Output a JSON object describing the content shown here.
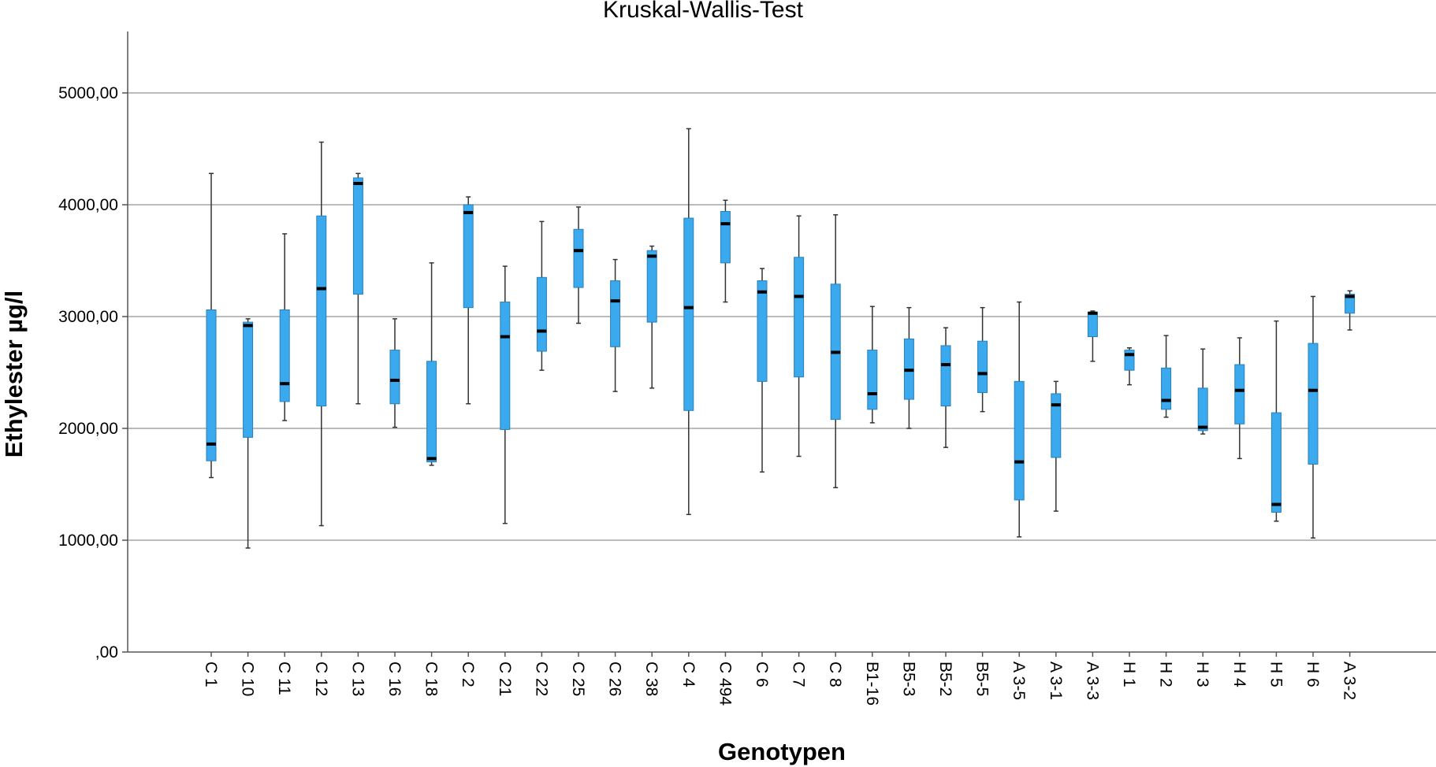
{
  "chart_data": {
    "type": "boxplot",
    "title": "Kruskal-Wallis-Test",
    "xlabel": "Genotypen",
    "ylabel": "Ethylester µg/l",
    "ylim": [
      0,
      5500
    ],
    "yticks": [
      0,
      1000,
      2000,
      3000,
      4000,
      5000
    ],
    "ytick_labels": [
      ",00",
      "1000,00",
      "2000,00",
      "3000,00",
      "4000,00",
      "5000,00"
    ],
    "grid": "horizontal",
    "box_color": "#3aa9ee",
    "categories": [
      "C 1",
      "C 10",
      "C 11",
      "C 12",
      "C 13",
      "C 16",
      "C 18",
      "C 2",
      "C 21",
      "C 22",
      "C 25",
      "C 26",
      "C 38",
      "C 4",
      "C 494",
      "C 6",
      "C 7",
      "C 8",
      "B1-16",
      "B5-3",
      "B5-2",
      "B5-5",
      "A 3-5",
      "A 3-1",
      "A 3-3",
      "H 1",
      "H 2",
      "H 3",
      "H 4",
      "H 5",
      "H 6",
      "A 3-2"
    ],
    "boxes": [
      {
        "min": 1560,
        "q1": 1710,
        "median": 1860,
        "q3": 3060,
        "max": 4280
      },
      {
        "min": 930,
        "q1": 1920,
        "median": 2920,
        "q3": 2950,
        "max": 2980
      },
      {
        "min": 2070,
        "q1": 2240,
        "median": 2400,
        "q3": 3060,
        "max": 3740
      },
      {
        "min": 1130,
        "q1": 2200,
        "median": 3250,
        "q3": 3900,
        "max": 4560
      },
      {
        "min": 2220,
        "q1": 3200,
        "median": 4190,
        "q3": 4240,
        "max": 4280
      },
      {
        "min": 2010,
        "q1": 2220,
        "median": 2430,
        "q3": 2700,
        "max": 2980
      },
      {
        "min": 1670,
        "q1": 1700,
        "median": 1730,
        "q3": 2600,
        "max": 3480
      },
      {
        "min": 2220,
        "q1": 3080,
        "median": 3930,
        "q3": 4000,
        "max": 4070
      },
      {
        "min": 1150,
        "q1": 1990,
        "median": 2820,
        "q3": 3130,
        "max": 3450
      },
      {
        "min": 2520,
        "q1": 2690,
        "median": 2870,
        "q3": 3350,
        "max": 3850
      },
      {
        "min": 2940,
        "q1": 3260,
        "median": 3590,
        "q3": 3780,
        "max": 3980
      },
      {
        "min": 2330,
        "q1": 2730,
        "median": 3140,
        "q3": 3320,
        "max": 3510
      },
      {
        "min": 2360,
        "q1": 2950,
        "median": 3540,
        "q3": 3590,
        "max": 3630
      },
      {
        "min": 1230,
        "q1": 2160,
        "median": 3080,
        "q3": 3880,
        "max": 4680
      },
      {
        "min": 3130,
        "q1": 3480,
        "median": 3830,
        "q3": 3940,
        "max": 4040
      },
      {
        "min": 1610,
        "q1": 2420,
        "median": 3220,
        "q3": 3320,
        "max": 3430
      },
      {
        "min": 1750,
        "q1": 2460,
        "median": 3180,
        "q3": 3530,
        "max": 3900
      },
      {
        "min": 1470,
        "q1": 2080,
        "median": 2680,
        "q3": 3290,
        "max": 3910
      },
      {
        "min": 2050,
        "q1": 2170,
        "median": 2310,
        "q3": 2700,
        "max": 3090
      },
      {
        "min": 2000,
        "q1": 2260,
        "median": 2520,
        "q3": 2800,
        "max": 3080
      },
      {
        "min": 1830,
        "q1": 2200,
        "median": 2570,
        "q3": 2740,
        "max": 2900
      },
      {
        "min": 2150,
        "q1": 2320,
        "median": 2490,
        "q3": 2780,
        "max": 3080
      },
      {
        "min": 1030,
        "q1": 1360,
        "median": 1700,
        "q3": 2420,
        "max": 3130
      },
      {
        "min": 1260,
        "q1": 1740,
        "median": 2210,
        "q3": 2310,
        "max": 2420
      },
      {
        "min": 2600,
        "q1": 2820,
        "median": 3030,
        "q3": 3040,
        "max": 3050
      },
      {
        "min": 2390,
        "q1": 2520,
        "median": 2660,
        "q3": 2700,
        "max": 2720
      },
      {
        "min": 2100,
        "q1": 2170,
        "median": 2250,
        "q3": 2540,
        "max": 2830
      },
      {
        "min": 1950,
        "q1": 1980,
        "median": 2010,
        "q3": 2360,
        "max": 2710
      },
      {
        "min": 1730,
        "q1": 2040,
        "median": 2340,
        "q3": 2570,
        "max": 2810
      },
      {
        "min": 1170,
        "q1": 1250,
        "median": 1320,
        "q3": 2140,
        "max": 2960
      },
      {
        "min": 1020,
        "q1": 1680,
        "median": 2340,
        "q3": 2760,
        "max": 3180
      },
      {
        "min": 2880,
        "q1": 3030,
        "median": 3180,
        "q3": 3200,
        "max": 3230
      }
    ]
  }
}
